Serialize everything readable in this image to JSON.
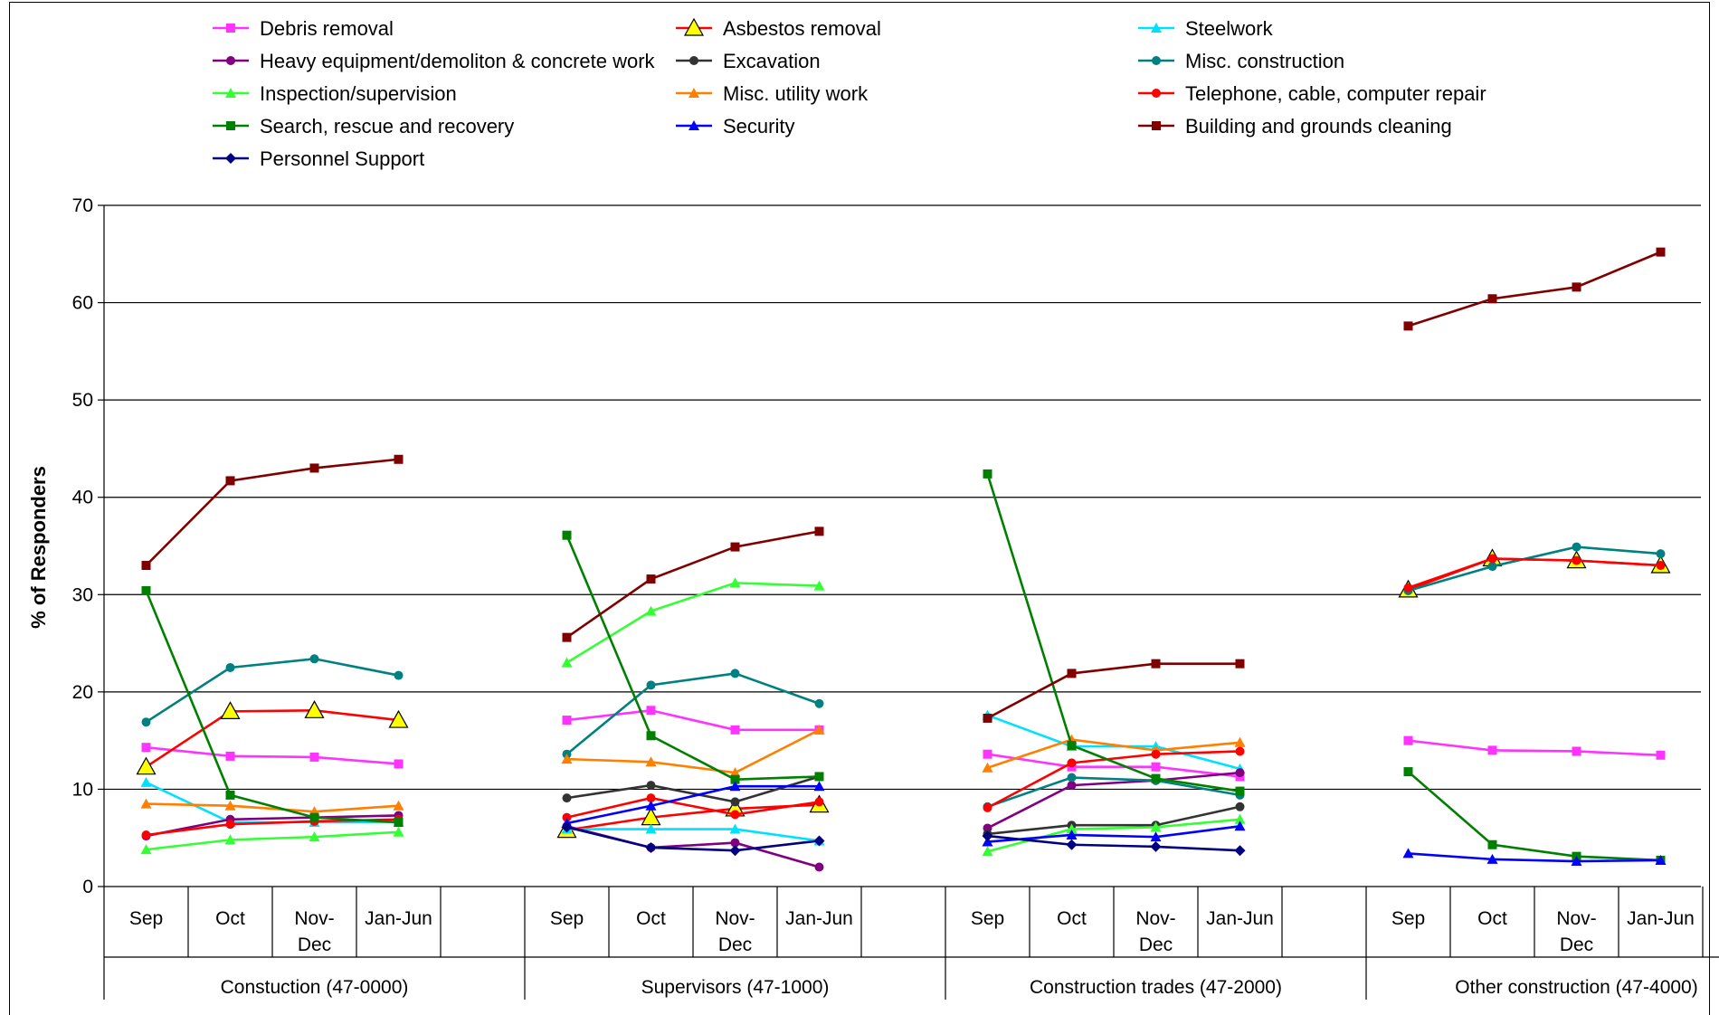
{
  "chart_data": {
    "type": "line",
    "title": "",
    "ylabel": "% of Responders",
    "ylim": [
      0,
      70
    ],
    "yticks": [
      0,
      10,
      20,
      30,
      40,
      50,
      60,
      70
    ],
    "grid": true,
    "legend_position": "top",
    "groups": [
      {
        "label": "Constuction (47-0000)",
        "periods": [
          "Sep",
          "Oct",
          "Nov-\nDec",
          "Jan-Jun"
        ]
      },
      {
        "label": "Supervisors (47-1000)",
        "periods": [
          "Sep",
          "Oct",
          "Nov-\nDec",
          "Jan-Jun"
        ]
      },
      {
        "label": "Construction trades (47-2000)",
        "periods": [
          "Sep",
          "Oct",
          "Nov-\nDec",
          "Jan-Jun"
        ]
      },
      {
        "label": "Other construction (47-4000)",
        "periods": [
          "Sep",
          "Oct",
          "Nov-\nDec",
          "Jan-Jun"
        ]
      }
    ],
    "series": [
      {
        "name": "Debris removal",
        "color": "#FF33FF",
        "marker": "square",
        "values": [
          [
            14.3,
            13.4,
            13.3,
            12.6
          ],
          [
            17.1,
            18.1,
            16.1,
            16.1
          ],
          [
            13.6,
            12.3,
            12.3,
            11.3
          ],
          [
            15.0,
            14.0,
            13.9,
            13.5
          ]
        ]
      },
      {
        "name": "Asbestos removal",
        "color": "#FF0000",
        "marker": "triangle-yellow",
        "values": [
          [
            12.3,
            18.0,
            18.1,
            17.1
          ],
          [
            5.8,
            7.1,
            8.0,
            8.4
          ],
          [
            null,
            null,
            null,
            null
          ],
          [
            30.5,
            33.7,
            33.5,
            33.0
          ]
        ]
      },
      {
        "name": "Steelwork",
        "color": "#00E0FF",
        "marker": "triangle",
        "values": [
          [
            10.7,
            6.6,
            6.6,
            6.6
          ],
          [
            5.9,
            5.9,
            5.9,
            4.7
          ],
          [
            17.6,
            14.4,
            14.4,
            12.1
          ],
          [
            null,
            null,
            null,
            null
          ]
        ]
      },
      {
        "name": "Heavy equipment/demoliton & concrete work",
        "color": "#800080",
        "marker": "circle",
        "values": [
          [
            5.2,
            6.9,
            7.1,
            7.3
          ],
          [
            6.2,
            4.0,
            4.5,
            2.0
          ],
          [
            6.0,
            10.4,
            10.9,
            11.7
          ],
          [
            null,
            null,
            null,
            null
          ]
        ]
      },
      {
        "name": "Excavation",
        "color": "#333333",
        "marker": "circle",
        "values": [
          [
            null,
            null,
            null,
            null
          ],
          [
            9.1,
            10.4,
            8.7,
            11.3
          ],
          [
            5.4,
            6.3,
            6.3,
            8.2
          ],
          [
            null,
            null,
            null,
            null
          ]
        ]
      },
      {
        "name": "Misc. construction",
        "color": "#008080",
        "marker": "circle",
        "values": [
          [
            16.9,
            22.5,
            23.4,
            21.7
          ],
          [
            13.6,
            20.7,
            21.9,
            18.8
          ],
          [
            8.2,
            11.2,
            10.9,
            9.4
          ],
          [
            30.4,
            32.9,
            34.9,
            34.2
          ]
        ]
      },
      {
        "name": "Inspection/supervision",
        "color": "#33FF33",
        "marker": "triangle",
        "values": [
          [
            3.8,
            4.8,
            5.1,
            5.6
          ],
          [
            23.0,
            28.3,
            31.2,
            30.9
          ],
          [
            3.6,
            5.9,
            6.1,
            6.9
          ],
          [
            null,
            null,
            null,
            null
          ]
        ]
      },
      {
        "name": "Misc. utility work",
        "color": "#FF7F00",
        "marker": "triangle",
        "values": [
          [
            8.5,
            8.3,
            7.7,
            8.3
          ],
          [
            13.1,
            12.8,
            11.7,
            16.1
          ],
          [
            12.2,
            15.1,
            14.0,
            14.8
          ],
          [
            null,
            null,
            null,
            null
          ]
        ]
      },
      {
        "name": "Telephone, cable, computer repair",
        "color": "#FF0000",
        "marker": "circle",
        "values": [
          [
            5.3,
            6.4,
            6.7,
            6.9
          ],
          [
            7.1,
            9.1,
            7.4,
            8.7
          ],
          [
            8.1,
            12.7,
            13.6,
            13.9
          ],
          [
            30.7,
            33.7,
            33.5,
            33.0
          ]
        ]
      },
      {
        "name": "Search, rescue and recovery",
        "color": "#008000",
        "marker": "square",
        "values": [
          [
            30.4,
            9.4,
            7.1,
            6.6
          ],
          [
            36.1,
            15.5,
            11.0,
            11.3
          ],
          [
            42.4,
            14.5,
            11.1,
            9.8
          ],
          [
            11.8,
            4.3,
            3.1,
            2.7
          ]
        ]
      },
      {
        "name": "Security",
        "color": "#0000FF",
        "marker": "triangle",
        "values": [
          [
            null,
            null,
            null,
            null
          ],
          [
            6.5,
            8.3,
            10.3,
            10.3
          ],
          [
            4.6,
            5.3,
            5.1,
            6.2
          ],
          [
            3.4,
            2.8,
            2.6,
            2.7
          ]
        ]
      },
      {
        "name": "Building and grounds cleaning",
        "color": "#800000",
        "marker": "square",
        "values": [
          [
            33.0,
            41.7,
            43.0,
            43.9
          ],
          [
            25.6,
            31.6,
            34.9,
            36.5
          ],
          [
            17.3,
            21.9,
            22.9,
            22.9
          ],
          [
            57.6,
            60.4,
            61.6,
            65.2
          ]
        ]
      },
      {
        "name": "Personnel Support",
        "color": "#000080",
        "marker": "diamond",
        "values": [
          [
            null,
            null,
            null,
            null
          ],
          [
            6.1,
            4.0,
            3.7,
            4.7
          ],
          [
            5.2,
            4.3,
            4.1,
            3.7
          ],
          [
            null,
            null,
            null,
            null
          ]
        ]
      }
    ]
  }
}
